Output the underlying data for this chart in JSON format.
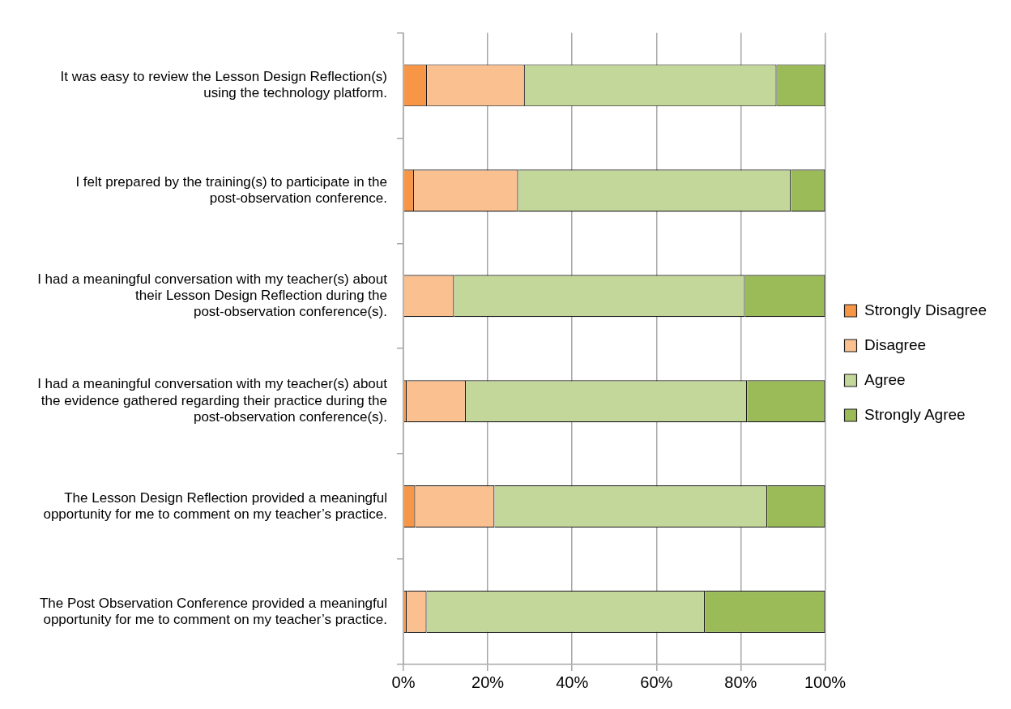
{
  "chart_data": {
    "type": "bar",
    "orientation": "horizontal",
    "stacked": true,
    "categories": [
      "It was easy to review the Lesson Design Reflection(s) using the technology platform.",
      "I felt prepared by the training(s) to participate in the post-observation conference.",
      "I had a meaningful conversation with my teacher(s) about their Lesson Design Reflection during the post-observation conference(s).",
      "I had a meaningful conversation with my teacher(s) about the evidence gathered regarding their practice during the post-observation conference(s).",
      "The Lesson Design Reflection provided a meaningful opportunity for me to comment on my teacher’s practice.",
      "The Post Observation Conference provided a meaningful opportunity for me to comment on my teacher’s practice."
    ],
    "series": [
      {
        "name": "Strongly Disagree",
        "color": "#f79646",
        "values": [
          5.6,
          2.5,
          0,
          0.8,
          2.8,
          0.8
        ]
      },
      {
        "name": "Disagree",
        "color": "#fac090",
        "values": [
          23.2,
          24.7,
          12,
          14,
          18.8,
          4.7
        ]
      },
      {
        "name": "Agree",
        "color": "#c4d79b",
        "values": [
          59.7,
          64.7,
          69,
          66.7,
          64.7,
          66
        ]
      },
      {
        "name": "Strongly Agree",
        "color": "#9bbb59",
        "values": [
          11.5,
          8.1,
          19,
          18.5,
          13.7,
          28.5
        ]
      }
    ],
    "xlim": [
      0,
      100
    ],
    "xticks": [
      {
        "value": 0,
        "label": "0%"
      },
      {
        "value": 20,
        "label": "20%"
      },
      {
        "value": 40,
        "label": "40%"
      },
      {
        "value": 60,
        "label": "60%"
      },
      {
        "value": 80,
        "label": "80%"
      },
      {
        "value": 100,
        "label": "100%"
      }
    ],
    "grid": "x",
    "legend": "right"
  }
}
